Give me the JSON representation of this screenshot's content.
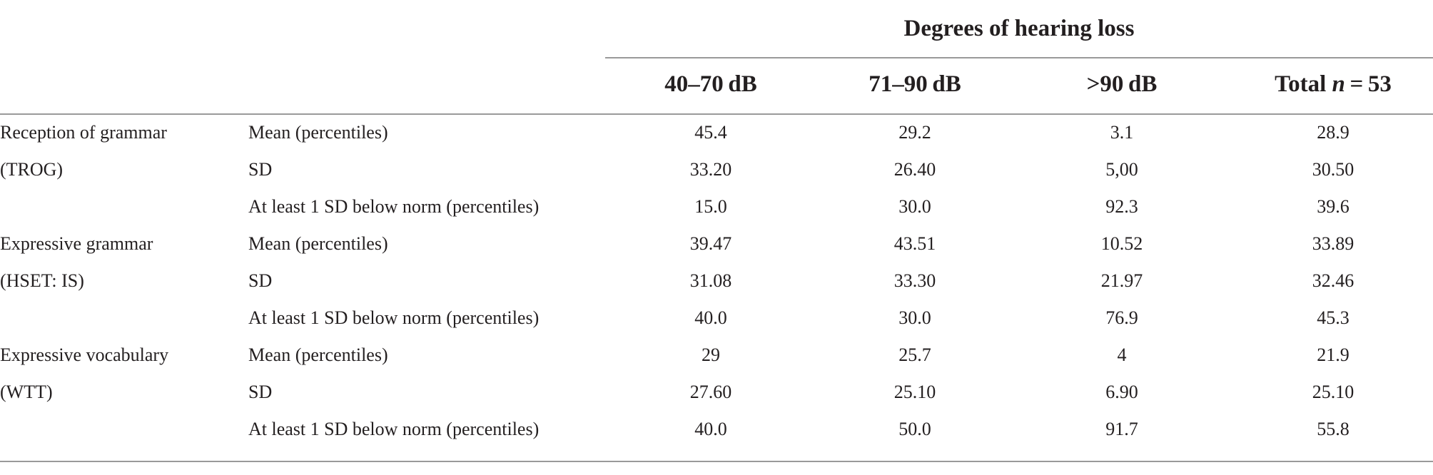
{
  "table": {
    "group_header": "Degrees of hearing loss",
    "columns": [
      "40–70 dB",
      "71–90 dB",
      ">90 dB"
    ],
    "total_column": {
      "prefix": "Total ",
      "n": "n",
      "suffix": " = 53"
    },
    "rows": [
      {
        "label": "Reception of grammar",
        "stat": "Mean (percentiles)",
        "values": [
          "45.4",
          "29.2",
          "3.1",
          "28.9"
        ]
      },
      {
        "label": "(TROG)",
        "stat": "SD",
        "values": [
          "33.20",
          "26.40",
          "5,00",
          "30.50"
        ]
      },
      {
        "label": "",
        "stat": "At least 1 SD below norm (percentiles)",
        "values": [
          "15.0",
          "30.0",
          "92.3",
          "39.6"
        ]
      },
      {
        "label": "Expressive grammar",
        "stat": "Mean (percentiles)",
        "values": [
          "39.47",
          "43.51",
          "10.52",
          "33.89"
        ]
      },
      {
        "label": "(HSET: IS)",
        "stat": "SD",
        "values": [
          "31.08",
          "33.30",
          "21.97",
          "32.46"
        ]
      },
      {
        "label": "",
        "stat": "At least 1 SD below norm (percentiles)",
        "values": [
          "40.0",
          "30.0",
          "76.9",
          "45.3"
        ]
      },
      {
        "label": "Expressive vocabulary",
        "stat": "Mean (percentiles)",
        "values": [
          "29",
          "25.7",
          "4",
          "21.9"
        ]
      },
      {
        "label": "(WTT)",
        "stat": "SD",
        "values": [
          "27.60",
          "25.10",
          "6.90",
          "25.10"
        ]
      },
      {
        "label": "",
        "stat": "At least 1 SD below norm (percentiles)",
        "values": [
          "40.0",
          "50.0",
          "91.7",
          "55.8"
        ]
      }
    ]
  }
}
